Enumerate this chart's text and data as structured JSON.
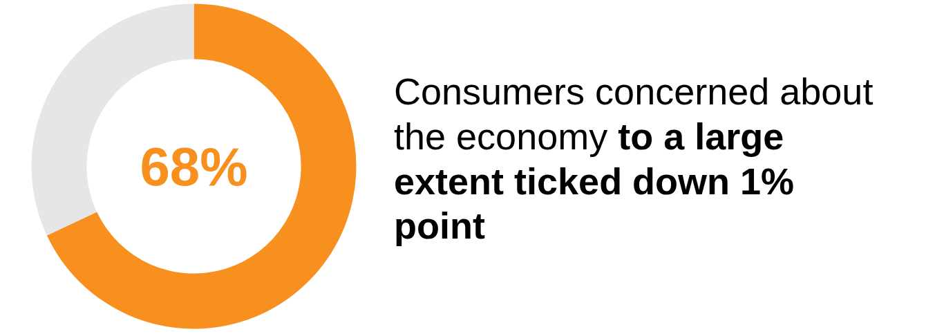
{
  "chart_data": {
    "type": "donut",
    "title": "Consumers concerned about the economy",
    "subtitle": "to a large extent ticked down 1% point",
    "categories": [
      null,
      null
    ],
    "values": [
      68,
      32
    ],
    "colors": [
      "#f7901e",
      "#e6e6e6"
    ],
    "annotations": [
      "68%"
    ]
  }
}
